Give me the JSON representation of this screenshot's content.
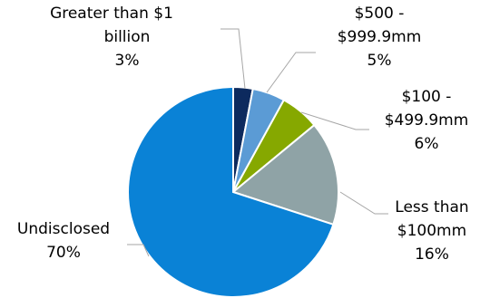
{
  "chart_data": {
    "type": "pie",
    "slices": [
      {
        "id": "gt-1b",
        "label_lines": [
          "Greater than $1",
          "billion"
        ],
        "value": 3,
        "value_label": "3%",
        "color": "#0d2a5e"
      },
      {
        "id": "500-999",
        "label_lines": [
          "$500 -",
          "$999.9mm"
        ],
        "value": 5,
        "value_label": "5%",
        "color": "#5b9bd5"
      },
      {
        "id": "100-499",
        "label_lines": [
          "$100 -",
          "$499.9mm"
        ],
        "value": 6,
        "value_label": "6%",
        "color": "#86a800"
      },
      {
        "id": "lt-100",
        "label_lines": [
          "Less than",
          "$100mm"
        ],
        "value": 16,
        "value_label": "16%",
        "color": "#8fa3a6"
      },
      {
        "id": "undisclosed",
        "label_lines": [
          "Undisclosed"
        ],
        "value": 70,
        "value_label": "70%",
        "color": "#0a82d6"
      }
    ],
    "start": "12 o'clock",
    "direction": "clockwise",
    "legend": "none"
  }
}
